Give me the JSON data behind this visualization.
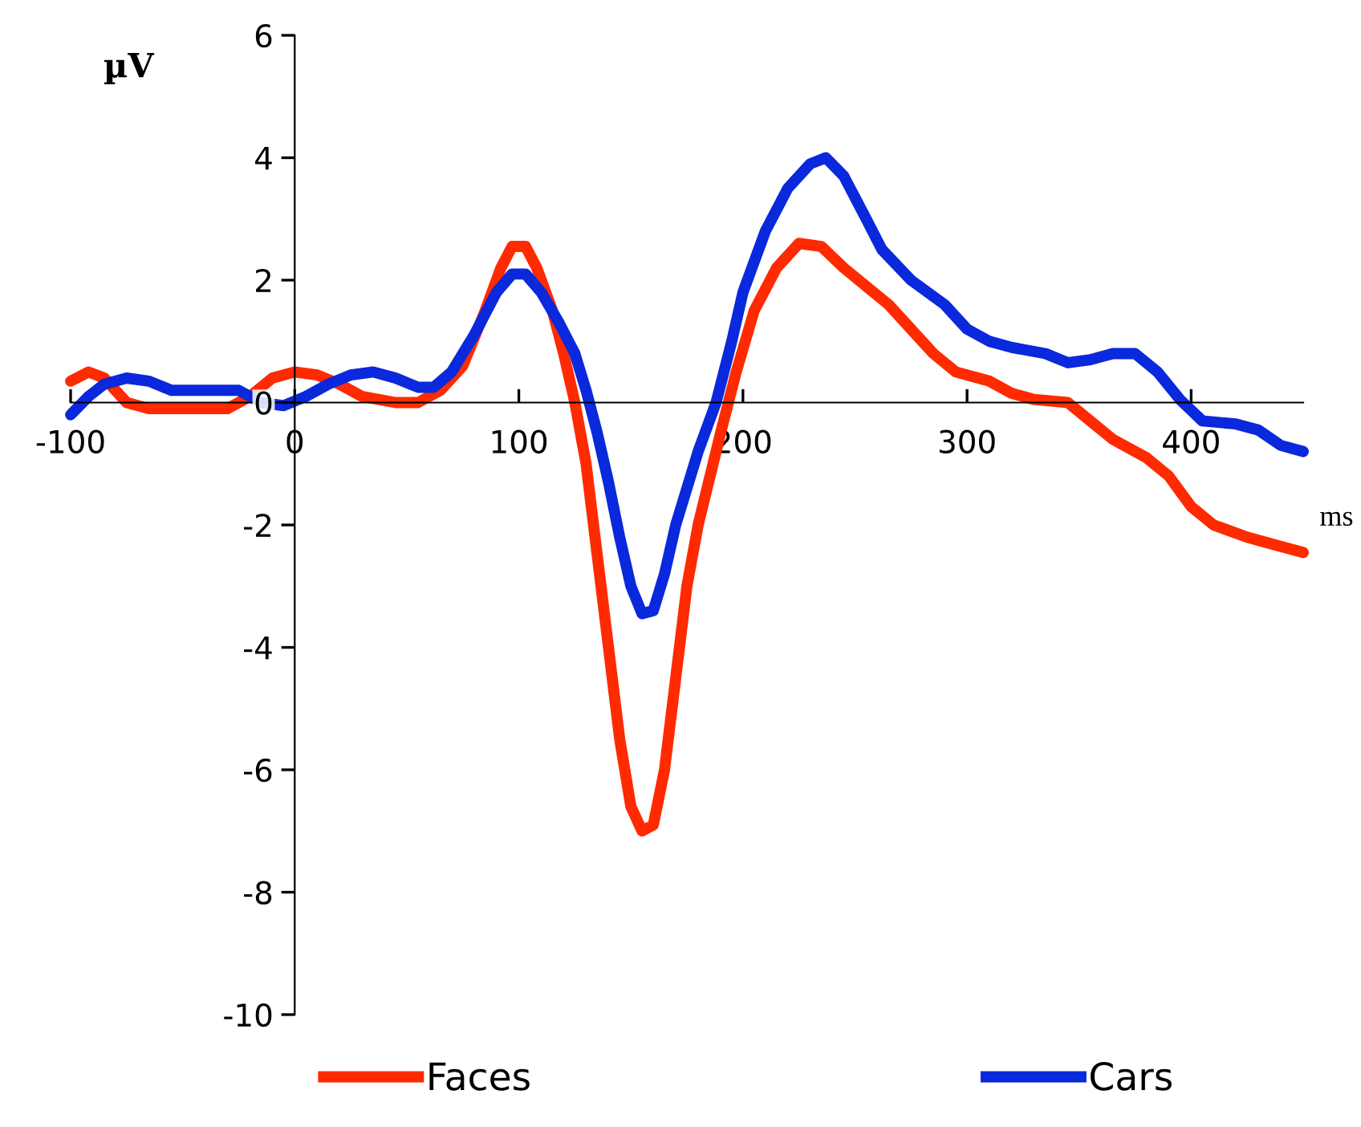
{
  "chart_data": {
    "type": "line",
    "xlabel": "ms",
    "ylabel": "µV",
    "xlim": [
      -100,
      450
    ],
    "ylim": [
      -10,
      6
    ],
    "xticks": [
      -100,
      0,
      100,
      200,
      300,
      400
    ],
    "yticks": [
      -10,
      -8,
      -6,
      -4,
      -2,
      0,
      2,
      4,
      6
    ],
    "grid": false,
    "legend": "bottom",
    "line_style": "solid",
    "marker": "none",
    "series": [
      {
        "name": "Faces",
        "color": "#ff2a00",
        "x": [
          -100,
          -92,
          -85,
          -75,
          -65,
          -50,
          -30,
          -20,
          -10,
          0,
          10,
          20,
          30,
          45,
          55,
          65,
          75,
          85,
          92,
          97,
          103,
          108,
          115,
          120,
          125,
          130,
          135,
          140,
          145,
          150,
          155,
          160,
          165,
          170,
          175,
          180,
          190,
          197,
          205,
          215,
          225,
          235,
          245,
          255,
          265,
          275,
          285,
          295,
          310,
          320,
          330,
          345,
          355,
          365,
          380,
          390,
          400,
          410,
          425,
          440,
          450
        ],
        "values": [
          0.35,
          0.5,
          0.4,
          0.0,
          -0.1,
          -0.1,
          -0.1,
          0.1,
          0.4,
          0.5,
          0.45,
          0.3,
          0.1,
          0.0,
          0.0,
          0.2,
          0.6,
          1.5,
          2.2,
          2.55,
          2.55,
          2.2,
          1.5,
          0.8,
          0.0,
          -1.0,
          -2.5,
          -4.0,
          -5.5,
          -6.6,
          -7.0,
          -6.9,
          -6.0,
          -4.5,
          -3.0,
          -2.0,
          -0.5,
          0.5,
          1.5,
          2.2,
          2.6,
          2.55,
          2.2,
          1.9,
          1.6,
          1.2,
          0.8,
          0.5,
          0.35,
          0.15,
          0.05,
          0.0,
          -0.3,
          -0.6,
          -0.9,
          -1.2,
          -1.7,
          -2.0,
          -2.2,
          -2.35,
          -2.45
        ]
      },
      {
        "name": "Cars",
        "color": "#0a28dc",
        "x": [
          -100,
          -92,
          -85,
          -75,
          -65,
          -55,
          -40,
          -25,
          -15,
          -5,
          5,
          15,
          25,
          35,
          45,
          55,
          62,
          70,
          80,
          90,
          97,
          103,
          110,
          118,
          125,
          130,
          135,
          140,
          145,
          150,
          155,
          160,
          165,
          170,
          180,
          188,
          195,
          200,
          210,
          220,
          230,
          237,
          245,
          255,
          262,
          275,
          290,
          300,
          310,
          320,
          335,
          345,
          355,
          365,
          375,
          385,
          395,
          405,
          420,
          430,
          440,
          450
        ],
        "values": [
          -0.2,
          0.1,
          0.3,
          0.4,
          0.35,
          0.2,
          0.2,
          0.2,
          0.0,
          -0.05,
          0.1,
          0.3,
          0.45,
          0.5,
          0.4,
          0.25,
          0.25,
          0.5,
          1.1,
          1.8,
          2.1,
          2.1,
          1.8,
          1.3,
          0.8,
          0.2,
          -0.5,
          -1.3,
          -2.2,
          -3.0,
          -3.45,
          -3.4,
          -2.8,
          -2.0,
          -0.8,
          0.0,
          1.0,
          1.8,
          2.8,
          3.5,
          3.9,
          4.0,
          3.7,
          3.0,
          2.5,
          2.0,
          1.6,
          1.2,
          1.0,
          0.9,
          0.8,
          0.65,
          0.7,
          0.8,
          0.8,
          0.5,
          0.05,
          -0.3,
          -0.35,
          -0.45,
          -0.7,
          -0.8
        ]
      }
    ]
  }
}
